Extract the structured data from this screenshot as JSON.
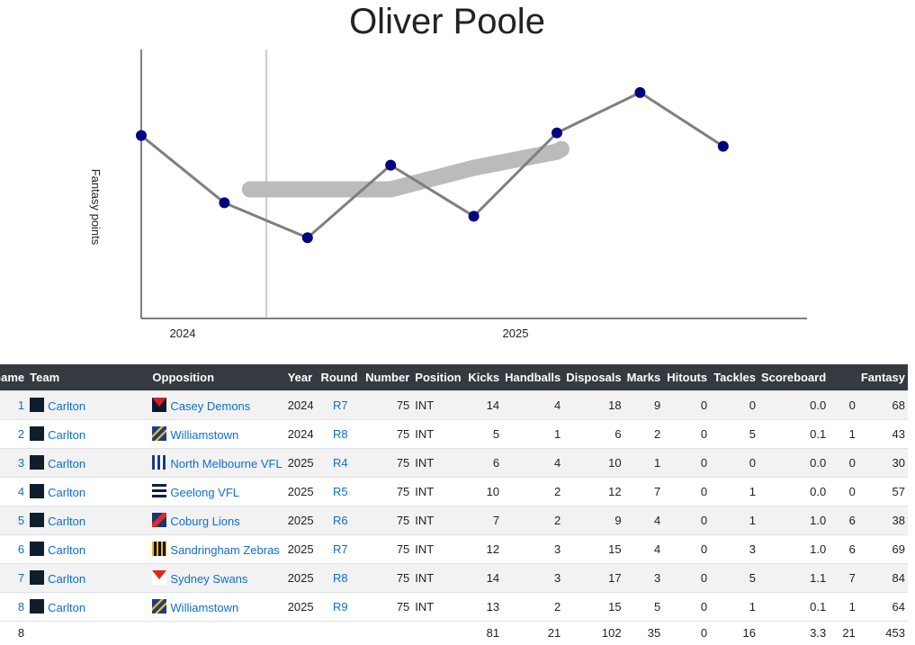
{
  "chart_data": {
    "type": "line",
    "title": "Oliver Poole",
    "ylabel": "Fantasy points",
    "x_groups": [
      "2024",
      "2025"
    ],
    "x": [
      "2024 R7",
      "2024 R8",
      "2025 R4",
      "2025 R5",
      "2025 R6",
      "2025 R7",
      "2025 R8",
      "2025 R9"
    ],
    "ylim": [
      0,
      100
    ],
    "series": [
      {
        "values": [
          68,
          43,
          30,
          57,
          38,
          69,
          84,
          64
        ],
        "color": "#7f7f7f",
        "marker_color": "#000080"
      },
      {
        "values": [
          null,
          null,
          48,
          48,
          56,
          62,
          null,
          null
        ],
        "color": "#bbbbbb"
      }
    ]
  },
  "table": {
    "headers": [
      "Game",
      "Team",
      "Opposition",
      "Year",
      "Round",
      "Number",
      "Position",
      "Kicks",
      "Handballs",
      "Disposals",
      "Marks",
      "Hitouts",
      "Tackles",
      "Scoreboard",
      "",
      "Fantasy"
    ],
    "rows": [
      {
        "game": "1",
        "team": "Carlton",
        "opp": "Casey Demons",
        "opp_icon": "casey-demons-icon",
        "year": "2024",
        "round": "R7",
        "number": "75",
        "pos": "INT",
        "kicks": "14",
        "hb": "4",
        "disp": "18",
        "marks": "9",
        "hit": "0",
        "tack": "0",
        "score": "0.0",
        "s2": "0",
        "fan": "68"
      },
      {
        "game": "2",
        "team": "Carlton",
        "opp": "Williamstown",
        "opp_icon": "williamstown-icon",
        "year": "2024",
        "round": "R8",
        "number": "75",
        "pos": "INT",
        "kicks": "5",
        "hb": "1",
        "disp": "6",
        "marks": "2",
        "hit": "0",
        "tack": "5",
        "score": "0.1",
        "s2": "1",
        "fan": "43"
      },
      {
        "game": "3",
        "team": "Carlton",
        "opp": "North Melbourne VFL",
        "opp_icon": "north-melbourne-icon",
        "year": "2025",
        "round": "R4",
        "number": "75",
        "pos": "INT",
        "kicks": "6",
        "hb": "4",
        "disp": "10",
        "marks": "1",
        "hit": "0",
        "tack": "0",
        "score": "0.0",
        "s2": "0",
        "fan": "30"
      },
      {
        "game": "4",
        "team": "Carlton",
        "opp": "Geelong VFL",
        "opp_icon": "geelong-icon",
        "year": "2025",
        "round": "R5",
        "number": "75",
        "pos": "INT",
        "kicks": "10",
        "hb": "2",
        "disp": "12",
        "marks": "7",
        "hit": "0",
        "tack": "1",
        "score": "0.0",
        "s2": "0",
        "fan": "57"
      },
      {
        "game": "5",
        "team": "Carlton",
        "opp": "Coburg Lions",
        "opp_icon": "coburg-icon",
        "year": "2025",
        "round": "R6",
        "number": "75",
        "pos": "INT",
        "kicks": "7",
        "hb": "2",
        "disp": "9",
        "marks": "4",
        "hit": "0",
        "tack": "1",
        "score": "1.0",
        "s2": "6",
        "fan": "38"
      },
      {
        "game": "6",
        "team": "Carlton",
        "opp": "Sandringham Zebras",
        "opp_icon": "sandringham-icon",
        "year": "2025",
        "round": "R7",
        "number": "75",
        "pos": "INT",
        "kicks": "12",
        "hb": "3",
        "disp": "15",
        "marks": "4",
        "hit": "0",
        "tack": "3",
        "score": "1.0",
        "s2": "6",
        "fan": "69"
      },
      {
        "game": "7",
        "team": "Carlton",
        "opp": "Sydney Swans",
        "opp_icon": "sydney-icon",
        "year": "2025",
        "round": "R8",
        "number": "75",
        "pos": "INT",
        "kicks": "14",
        "hb": "3",
        "disp": "17",
        "marks": "3",
        "hit": "0",
        "tack": "5",
        "score": "1.1",
        "s2": "7",
        "fan": "84"
      },
      {
        "game": "8",
        "team": "Carlton",
        "opp": "Williamstown",
        "opp_icon": "williamstown-icon",
        "year": "2025",
        "round": "R9",
        "number": "75",
        "pos": "INT",
        "kicks": "13",
        "hb": "2",
        "disp": "15",
        "marks": "5",
        "hit": "0",
        "tack": "1",
        "score": "0.1",
        "s2": "1",
        "fan": "64"
      }
    ],
    "totals": {
      "game": "8",
      "kicks": "81",
      "hb": "21",
      "disp": "102",
      "marks": "35",
      "hit": "0",
      "tack": "16",
      "score": "3.3",
      "s2": "21",
      "fan": "453"
    }
  },
  "colors": {
    "header_bg": "#343a40",
    "link": "#0b6fd6",
    "carlton": "#0e1e2d"
  }
}
